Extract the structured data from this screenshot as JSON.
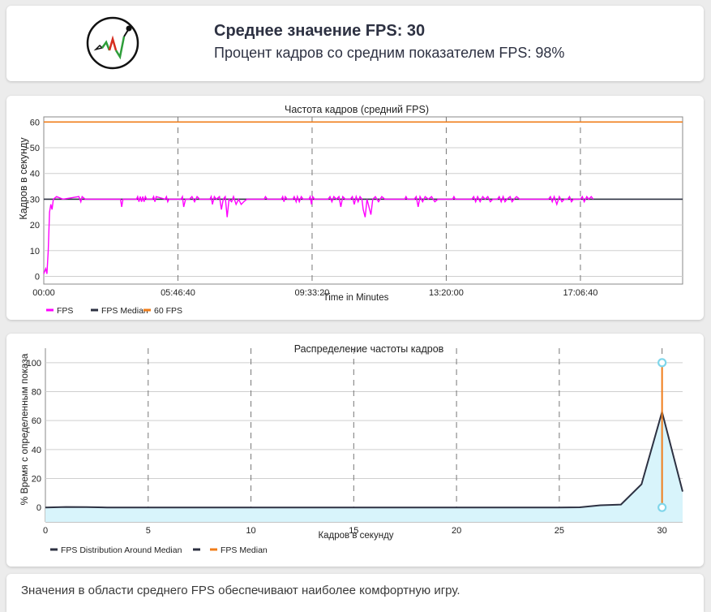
{
  "summary": {
    "avg_fps": "Среднее значение FPS: 30",
    "pct_fps": "Процент кадров со средним показателем FPS: 98%"
  },
  "footer": {
    "text": "Значения в области среднего FPS обеспечивают наиболее комфортную игру."
  },
  "colors": {
    "fps": "#ff00ff",
    "median": "#2d3142",
    "limit": "#f07d1a",
    "dist_fill": "#d8f4fb",
    "marker": "#7fd6ea"
  },
  "chart_data": [
    {
      "type": "line",
      "title": "Частота кадров (средний FPS)",
      "xlabel": "Time in Minutes",
      "ylabel": "Кадров в секунду",
      "xticks": [
        "00:00",
        "05:46:40",
        "09:33:20",
        "13:20:00",
        "17:06:40"
      ],
      "xtick_positions": [
        0,
        0.21,
        0.42,
        0.63,
        0.84
      ],
      "xlim": [
        0,
        1
      ],
      "yticks": [
        0,
        10,
        20,
        30,
        40,
        50,
        60
      ],
      "ylim": [
        -3,
        62
      ],
      "grid": true,
      "legend": "bottom-left",
      "series": [
        {
          "name": "FPS",
          "color": "#ff00ff",
          "points": [
            [
              0.0,
              1
            ],
            [
              0.003,
              3
            ],
            [
              0.005,
              1
            ],
            [
              0.007,
              10
            ],
            [
              0.009,
              25
            ],
            [
              0.011,
              28
            ],
            [
              0.013,
              26
            ],
            [
              0.015,
              30
            ],
            [
              0.02,
              31
            ],
            [
              0.03,
              30
            ],
            [
              0.055,
              31
            ],
            [
              0.058,
              29
            ],
            [
              0.06,
              31
            ],
            [
              0.065,
              30
            ],
            [
              0.12,
              30
            ],
            [
              0.122,
              27
            ],
            [
              0.124,
              30
            ],
            [
              0.145,
              30
            ],
            [
              0.147,
              31
            ],
            [
              0.149,
              29
            ],
            [
              0.151,
              31
            ],
            [
              0.153,
              29
            ],
            [
              0.155,
              31
            ],
            [
              0.157,
              29
            ],
            [
              0.159,
              31
            ],
            [
              0.161,
              30
            ],
            [
              0.17,
              30
            ],
            [
              0.172,
              31
            ],
            [
              0.174,
              29
            ],
            [
              0.176,
              31
            ],
            [
              0.19,
              30
            ],
            [
              0.192,
              31
            ],
            [
              0.194,
              29
            ],
            [
              0.196,
              30
            ],
            [
              0.215,
              30
            ],
            [
              0.217,
              31
            ],
            [
              0.219,
              27
            ],
            [
              0.222,
              30
            ],
            [
              0.228,
              30
            ],
            [
              0.232,
              31
            ],
            [
              0.236,
              29
            ],
            [
              0.24,
              31
            ],
            [
              0.244,
              30
            ],
            [
              0.26,
              30
            ],
            [
              0.262,
              31
            ],
            [
              0.264,
              28
            ],
            [
              0.267,
              31
            ],
            [
              0.27,
              30
            ],
            [
              0.275,
              31
            ],
            [
              0.278,
              26
            ],
            [
              0.281,
              30
            ],
            [
              0.284,
              31
            ],
            [
              0.287,
              23
            ],
            [
              0.29,
              30
            ],
            [
              0.294,
              29
            ],
            [
              0.297,
              31
            ],
            [
              0.301,
              28
            ],
            [
              0.305,
              30
            ],
            [
              0.309,
              28
            ],
            [
              0.313,
              29
            ],
            [
              0.318,
              30
            ],
            [
              0.345,
              30
            ],
            [
              0.347,
              31
            ],
            [
              0.35,
              30
            ],
            [
              0.372,
              30
            ],
            [
              0.374,
              31
            ],
            [
              0.376,
              29
            ],
            [
              0.378,
              31
            ],
            [
              0.381,
              30
            ],
            [
              0.39,
              30
            ],
            [
              0.392,
              31
            ],
            [
              0.395,
              29
            ],
            [
              0.397,
              31
            ],
            [
              0.4,
              29
            ],
            [
              0.403,
              31
            ],
            [
              0.406,
              30
            ],
            [
              0.415,
              30
            ],
            [
              0.417,
              31
            ],
            [
              0.419,
              28
            ],
            [
              0.421,
              31
            ],
            [
              0.424,
              30
            ],
            [
              0.445,
              30
            ],
            [
              0.448,
              31
            ],
            [
              0.451,
              29
            ],
            [
              0.454,
              31
            ],
            [
              0.458,
              30
            ],
            [
              0.462,
              31
            ],
            [
              0.465,
              27
            ],
            [
              0.468,
              31
            ],
            [
              0.472,
              30
            ],
            [
              0.48,
              30
            ],
            [
              0.483,
              31
            ],
            [
              0.486,
              28
            ],
            [
              0.489,
              31
            ],
            [
              0.492,
              29
            ],
            [
              0.495,
              31
            ],
            [
              0.498,
              30
            ],
            [
              0.5,
              26
            ],
            [
              0.503,
              23
            ],
            [
              0.506,
              30
            ],
            [
              0.509,
              27
            ],
            [
              0.512,
              24
            ],
            [
              0.515,
              30
            ],
            [
              0.519,
              31
            ],
            [
              0.524,
              29
            ],
            [
              0.529,
              31
            ],
            [
              0.534,
              30
            ],
            [
              0.565,
              30
            ],
            [
              0.567,
              31
            ],
            [
              0.569,
              30
            ],
            [
              0.58,
              30
            ],
            [
              0.583,
              31
            ],
            [
              0.586,
              27
            ],
            [
              0.589,
              31
            ],
            [
              0.593,
              29
            ],
            [
              0.597,
              31
            ],
            [
              0.602,
              30
            ],
            [
              0.607,
              31
            ],
            [
              0.612,
              29
            ],
            [
              0.617,
              30
            ],
            [
              0.64,
              30
            ],
            [
              0.642,
              31
            ],
            [
              0.644,
              30
            ],
            [
              0.67,
              30
            ],
            [
              0.673,
              31
            ],
            [
              0.676,
              29
            ],
            [
              0.679,
              31
            ],
            [
              0.683,
              29
            ],
            [
              0.687,
              31
            ],
            [
              0.691,
              30
            ],
            [
              0.695,
              31
            ],
            [
              0.699,
              29
            ],
            [
              0.703,
              30
            ],
            [
              0.71,
              30
            ],
            [
              0.713,
              31
            ],
            [
              0.716,
              29
            ],
            [
              0.719,
              31
            ],
            [
              0.722,
              29
            ],
            [
              0.725,
              30
            ],
            [
              0.73,
              31
            ],
            [
              0.733,
              29
            ],
            [
              0.736,
              30
            ],
            [
              0.74,
              31
            ],
            [
              0.745,
              30
            ],
            [
              0.79,
              30
            ],
            [
              0.793,
              31
            ],
            [
              0.796,
              29
            ],
            [
              0.799,
              31
            ],
            [
              0.803,
              28
            ],
            [
              0.807,
              31
            ],
            [
              0.811,
              29
            ],
            [
              0.815,
              30
            ],
            [
              0.82,
              30
            ],
            [
              0.823,
              31
            ],
            [
              0.826,
              29
            ],
            [
              0.829,
              30
            ],
            [
              0.84,
              30
            ],
            [
              0.843,
              31
            ],
            [
              0.846,
              29
            ],
            [
              0.85,
              31
            ],
            [
              0.853,
              30
            ],
            [
              0.857,
              31
            ],
            [
              0.86,
              30
            ]
          ]
        },
        {
          "name": "FPS Median",
          "color": "#2d3142",
          "points": [
            [
              0,
              30
            ],
            [
              1,
              30
            ]
          ]
        },
        {
          "name": "60 FPS",
          "color": "#f07d1a",
          "points": [
            [
              0,
              60
            ],
            [
              1,
              60
            ]
          ]
        }
      ]
    },
    {
      "type": "area",
      "title": "Распределение частоты кадров",
      "xlabel": "Кадров в секунду",
      "ylabel": "% Время с определенным показа",
      "xlim": [
        0,
        31
      ],
      "ylim": [
        -10,
        110
      ],
      "xticks": [
        0,
        5,
        10,
        15,
        20,
        25,
        30
      ],
      "yticks": [
        0,
        20,
        40,
        60,
        80,
        100
      ],
      "grid": true,
      "legend": "bottom-left",
      "series": [
        {
          "name": "FPS Distribution Around Median",
          "color": "#2d3142",
          "x": [
            0,
            1,
            2,
            3,
            4,
            5,
            6,
            7,
            8,
            9,
            10,
            11,
            12,
            13,
            14,
            15,
            16,
            17,
            18,
            19,
            20,
            21,
            22,
            23,
            24,
            25,
            26,
            27,
            28,
            29,
            30,
            31
          ],
          "y": [
            0,
            0.3,
            0.2,
            0,
            0,
            0,
            0,
            0,
            0,
            0,
            0,
            0,
            0,
            0,
            0,
            0,
            0,
            0,
            0,
            0,
            0,
            0,
            0,
            0,
            0,
            0,
            0.1,
            1.5,
            2,
            16,
            66,
            11
          ]
        },
        {
          "name": "FPS Median",
          "color": "#f07d1a",
          "x": [
            30,
            30
          ],
          "y": [
            0,
            100
          ]
        }
      ]
    }
  ]
}
